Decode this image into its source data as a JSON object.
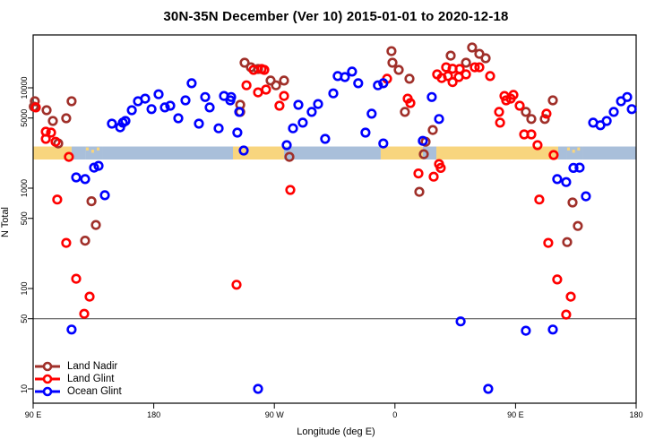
{
  "title": "30N-35N December (Ver 10)   2015-01-01 to 2020-12-18",
  "axes": {
    "x": {
      "label": "Longitude (deg E)",
      "range": [
        90,
        540
      ],
      "ticks": [
        {
          "v": 90,
          "label": "90 E"
        },
        {
          "v": 180,
          "label": "180"
        },
        {
          "v": 270,
          "label": "90 W"
        },
        {
          "v": 360,
          "label": "0"
        },
        {
          "v": 450,
          "label": "90 E"
        },
        {
          "v": 540,
          "label": "180"
        }
      ]
    },
    "y": {
      "label": "N Total",
      "scale": "log",
      "ticks": [
        {
          "v": 10000,
          "label": "10000"
        },
        {
          "v": 5000,
          "label": "5000"
        },
        {
          "v": 1000,
          "label": "1000"
        },
        {
          "v": 500,
          "label": "500"
        },
        {
          "v": 100,
          "label": "100"
        },
        {
          "v": 50,
          "label": "50"
        },
        {
          "v": 10,
          "label": "10"
        }
      ]
    }
  },
  "reference_line": {
    "value": 50,
    "color": "#444444"
  },
  "map_strip": {
    "top_value": 2600,
    "bottom_value": 1930,
    "land_color": "#F8D57E",
    "ocean_color": "#A9BFDA",
    "segments": [
      {
        "from": 90.0,
        "to": 118.7,
        "type": "land"
      },
      {
        "from": 118.7,
        "to": 129.4,
        "type": "ocean"
      },
      {
        "from": 129.4,
        "to": 141.5,
        "type": "land_dots"
      },
      {
        "from": 141.5,
        "to": 239.1,
        "type": "ocean"
      },
      {
        "from": 239.1,
        "to": 277.2,
        "type": "land"
      },
      {
        "from": 277.2,
        "to": 349.4,
        "type": "ocean"
      },
      {
        "from": 349.4,
        "to": 380.8,
        "type": "land"
      },
      {
        "from": 380.8,
        "to": 390.9,
        "type": "ocean"
      },
      {
        "from": 390.9,
        "to": 481.8,
        "type": "land"
      },
      {
        "from": 481.8,
        "to": 488.5,
        "type": "ocean"
      },
      {
        "from": 488.5,
        "to": 499.9,
        "type": "land_dots"
      },
      {
        "from": 499.9,
        "to": 540.0,
        "type": "ocean"
      }
    ]
  },
  "chart_data": {
    "type": "scatter",
    "x_axis": "Longitude (deg E), wrapped 90E through 180, 90W, 0, 90E to 180",
    "y_axis": "N Total (log scale)",
    "series": [
      {
        "name": "Land Nadir",
        "color": "#A0302A",
        "points": [
          [
            90.5,
            6500
          ],
          [
            91.3,
            7350
          ],
          [
            100.0,
            5980
          ],
          [
            104.7,
            4670
          ],
          [
            108.7,
            2790
          ],
          [
            114.7,
            4970
          ],
          [
            118.7,
            7350
          ],
          [
            128.8,
            300
          ],
          [
            133.5,
            740
          ],
          [
            136.8,
            430
          ],
          [
            244.5,
            6760
          ],
          [
            244.5,
            5750
          ],
          [
            247.8,
            17800
          ],
          [
            252.5,
            16000
          ],
          [
            257.8,
            15400
          ],
          [
            267.2,
            11800
          ],
          [
            271.2,
            10600
          ],
          [
            277.2,
            11800
          ],
          [
            281.2,
            2050
          ],
          [
            357.4,
            23200
          ],
          [
            358.1,
            17800
          ],
          [
            362.8,
            15100
          ],
          [
            367.4,
            5750
          ],
          [
            370.8,
            12300
          ],
          [
            378.2,
            920
          ],
          [
            381.5,
            2180
          ],
          [
            382.9,
            2900
          ],
          [
            388.2,
            3800
          ],
          [
            401.6,
            20900
          ],
          [
            413.0,
            17800
          ],
          [
            417.6,
            25200
          ],
          [
            423.0,
            21800
          ],
          [
            427.7,
            19700
          ],
          [
            457.7,
            5750
          ],
          [
            461.8,
            4890
          ],
          [
            471.8,
            4890
          ],
          [
            477.8,
            7500
          ],
          [
            488.5,
            290
          ],
          [
            492.5,
            720
          ],
          [
            496.5,
            420
          ]
        ]
      },
      {
        "name": "Land Glint",
        "color": "#FF0000",
        "points": [
          [
            92.0,
            6370
          ],
          [
            99.4,
            3650
          ],
          [
            99.4,
            3100
          ],
          [
            103.4,
            3580
          ],
          [
            106.7,
            2900
          ],
          [
            108.0,
            770
          ],
          [
            114.7,
            285
          ],
          [
            116.7,
            2050
          ],
          [
            122.1,
            125
          ],
          [
            128.1,
            56
          ],
          [
            132.1,
            83
          ],
          [
            241.8,
            109
          ],
          [
            249.2,
            10600
          ],
          [
            254.5,
            15100
          ],
          [
            257.8,
            9000
          ],
          [
            260.5,
            15400
          ],
          [
            262.5,
            15100
          ],
          [
            263.8,
            9600
          ],
          [
            273.8,
            6630
          ],
          [
            277.2,
            8300
          ],
          [
            281.9,
            960
          ],
          [
            354.1,
            12300
          ],
          [
            369.5,
            7800
          ],
          [
            371.5,
            7050
          ],
          [
            377.5,
            1400
          ],
          [
            388.9,
            1300
          ],
          [
            391.5,
            13600
          ],
          [
            392.9,
            1740
          ],
          [
            394.2,
            1590
          ],
          [
            394.9,
            12500
          ],
          [
            398.2,
            16000
          ],
          [
            399.6,
            13100
          ],
          [
            403.0,
            15500
          ],
          [
            403.0,
            11400
          ],
          [
            407.6,
            12800
          ],
          [
            408.3,
            15400
          ],
          [
            413.0,
            13600
          ],
          [
            419.6,
            16000
          ],
          [
            423.0,
            16000
          ],
          [
            431.0,
            13100
          ],
          [
            437.7,
            5750
          ],
          [
            438.4,
            4490
          ],
          [
            441.7,
            8300
          ],
          [
            443.0,
            7500
          ],
          [
            446.4,
            7800
          ],
          [
            448.4,
            8500
          ],
          [
            453.1,
            6630
          ],
          [
            456.4,
            3430
          ],
          [
            461.8,
            3430
          ],
          [
            466.4,
            2680
          ],
          [
            467.7,
            770
          ],
          [
            473.1,
            5520
          ],
          [
            474.4,
            285
          ],
          [
            478.4,
            2140
          ],
          [
            481.1,
            123
          ],
          [
            487.8,
            55
          ],
          [
            491.2,
            83
          ]
        ]
      },
      {
        "name": "Ocean Glint",
        "color": "#0000FF",
        "points": [
          [
            118.7,
            39
          ],
          [
            122.1,
            1280
          ],
          [
            128.8,
            1230
          ],
          [
            135.5,
            1600
          ],
          [
            138.8,
            1670
          ],
          [
            143.5,
            850
          ],
          [
            148.8,
            4390
          ],
          [
            154.9,
            4040
          ],
          [
            156.9,
            4490
          ],
          [
            158.9,
            4670
          ],
          [
            163.6,
            5980
          ],
          [
            168.2,
            7350
          ],
          [
            173.6,
            7800
          ],
          [
            178.3,
            6130
          ],
          [
            183.6,
            8630
          ],
          [
            188.3,
            6370
          ],
          [
            192.3,
            6630
          ],
          [
            198.3,
            4970
          ],
          [
            203.7,
            7500
          ],
          [
            208.3,
            11100
          ],
          [
            213.7,
            4390
          ],
          [
            218.4,
            8090
          ],
          [
            221.7,
            6370
          ],
          [
            228.4,
            3950
          ],
          [
            232.4,
            8300
          ],
          [
            237.1,
            7500
          ],
          [
            237.8,
            8090
          ],
          [
            242.4,
            3580
          ],
          [
            243.8,
            5750
          ],
          [
            247.1,
            2370
          ],
          [
            257.8,
            10
          ],
          [
            279.2,
            2680
          ],
          [
            283.9,
            3950
          ],
          [
            287.9,
            6760
          ],
          [
            291.2,
            4490
          ],
          [
            297.9,
            5750
          ],
          [
            302.6,
            6890
          ],
          [
            307.9,
            3100
          ],
          [
            314.0,
            8800
          ],
          [
            317.3,
            13100
          ],
          [
            322.6,
            12800
          ],
          [
            328.0,
            14500
          ],
          [
            332.6,
            11100
          ],
          [
            338.0,
            3580
          ],
          [
            342.6,
            5520
          ],
          [
            347.3,
            10600
          ],
          [
            351.3,
            11100
          ],
          [
            351.3,
            2790
          ],
          [
            380.8,
            2960
          ],
          [
            387.5,
            8090
          ],
          [
            392.9,
            4890
          ],
          [
            409.0,
            47
          ],
          [
            429.6,
            10
          ],
          [
            457.7,
            38
          ],
          [
            477.8,
            39
          ],
          [
            481.1,
            1230
          ],
          [
            487.8,
            1150
          ],
          [
            493.2,
            1590
          ],
          [
            497.8,
            1600
          ],
          [
            502.5,
            830
          ],
          [
            507.9,
            4490
          ],
          [
            513.3,
            4230
          ],
          [
            518.0,
            4670
          ],
          [
            523.3,
            5750
          ],
          [
            528.7,
            7350
          ],
          [
            533.3,
            8090
          ],
          [
            536.7,
            6130
          ]
        ]
      }
    ]
  },
  "legend": {
    "items": [
      "Land Nadir",
      "Land Glint",
      "Ocean Glint"
    ]
  }
}
